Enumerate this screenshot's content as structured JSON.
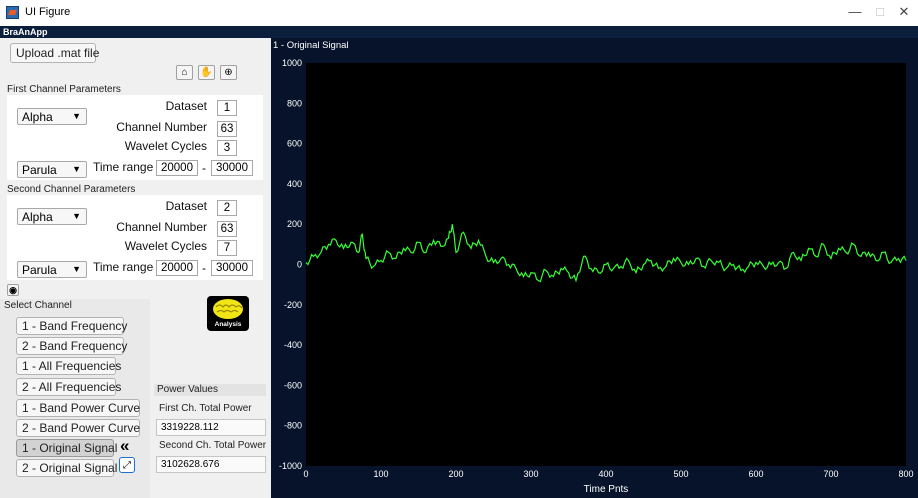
{
  "window": {
    "title": "UI Figure",
    "minimize": "—",
    "maximize": "□",
    "close": "✕",
    "menubar_label": "BraAnApp"
  },
  "left": {
    "upload_label": "Upload .mat file",
    "toolbar_icons": [
      "home-icon",
      "pan-hand-icon",
      "zoom-in-icon"
    ],
    "first_channel": {
      "heading": "First Channel Parameters",
      "band": "Alpha",
      "dataset_label": "Dataset",
      "dataset": "1",
      "channel_label": "Channel Number",
      "channel": "63",
      "cycles_label": "Wavelet Cycles",
      "cycles": "3",
      "colormap": "Parula",
      "time_label": "Time range",
      "time_from": "20000",
      "time_sep": "-",
      "time_to": "30000"
    },
    "second_channel": {
      "heading": "Second Channel Parameters",
      "band": "Alpha",
      "dataset_label": "Dataset",
      "dataset": "2",
      "channel_label": "Channel Number",
      "channel": "63",
      "cycles_label": "Wavelet Cycles",
      "cycles": "7",
      "colormap": "Parula",
      "time_label": "Time range",
      "time_from": "20000",
      "time_sep": "-",
      "time_to": "30000"
    },
    "select_channel_heading": "Select Channel",
    "analysis_label": "Analysis",
    "channel_buttons": [
      "1 - Band Frequency",
      "2 - Band Frequency",
      "1 - All Frequencies",
      "2 - All Frequencies",
      "1 - Band Power Curve",
      "2 - Band Power Curve",
      "1 - Original Signal",
      "2 - Original Signal"
    ],
    "collapse_icon": "«",
    "power": {
      "heading": "Power Values",
      "first_label": "First Ch. Total Power",
      "first_value": "3319228.112",
      "second_label": "Second Ch. Total Power",
      "second_value": "3102628.676"
    }
  },
  "plot": {
    "panel_title": "1 - Original Signal",
    "line_color": "#33ff33",
    "background": "#000000"
  },
  "chart_data": {
    "type": "line",
    "title": "",
    "xlabel": "Time Pnts",
    "ylabel": "",
    "xlim": [
      0,
      800
    ],
    "ylim": [
      -1000,
      1000
    ],
    "xticks": [
      0,
      100,
      200,
      300,
      400,
      500,
      600,
      700,
      800
    ],
    "yticks": [
      -1000,
      -800,
      -600,
      -400,
      -200,
      0,
      200,
      400,
      600,
      800,
      1000
    ],
    "grid": false,
    "series": [
      {
        "values": [
          [
            0,
            10
          ],
          [
            10,
            40
          ],
          [
            20,
            60
          ],
          [
            30,
            100
          ],
          [
            40,
            120
          ],
          [
            50,
            80
          ],
          [
            60,
            110
          ],
          [
            70,
            60
          ],
          [
            75,
            150
          ],
          [
            80,
            30
          ],
          [
            90,
            -10
          ],
          [
            100,
            20
          ],
          [
            110,
            60
          ],
          [
            120,
            30
          ],
          [
            130,
            80
          ],
          [
            140,
            60
          ],
          [
            150,
            110
          ],
          [
            160,
            60
          ],
          [
            170,
            120
          ],
          [
            180,
            90
          ],
          [
            190,
            130
          ],
          [
            195,
            200
          ],
          [
            200,
            60
          ],
          [
            210,
            160
          ],
          [
            220,
            80
          ],
          [
            230,
            120
          ],
          [
            240,
            40
          ],
          [
            250,
            10
          ],
          [
            260,
            30
          ],
          [
            270,
            0
          ],
          [
            280,
            -20
          ],
          [
            290,
            -60
          ],
          [
            300,
            -40
          ],
          [
            310,
            -80
          ],
          [
            320,
            -30
          ],
          [
            330,
            -60
          ],
          [
            340,
            -20
          ],
          [
            350,
            -40
          ],
          [
            360,
            -80
          ],
          [
            370,
            40
          ],
          [
            380,
            -20
          ],
          [
            390,
            -40
          ],
          [
            400,
            0
          ],
          [
            410,
            -20
          ],
          [
            420,
            -10
          ],
          [
            430,
            20
          ],
          [
            440,
            -40
          ],
          [
            450,
            0
          ],
          [
            460,
            20
          ],
          [
            470,
            -20
          ],
          [
            480,
            -10
          ],
          [
            490,
            30
          ],
          [
            500,
            10
          ],
          [
            510,
            0
          ],
          [
            520,
            30
          ],
          [
            530,
            -10
          ],
          [
            540,
            20
          ],
          [
            550,
            10
          ],
          [
            560,
            -20
          ],
          [
            570,
            0
          ],
          [
            580,
            -30
          ],
          [
            590,
            -10
          ],
          [
            600,
            10
          ],
          [
            610,
            -10
          ],
          [
            620,
            0
          ],
          [
            630,
            10
          ],
          [
            640,
            -20
          ],
          [
            650,
            60
          ],
          [
            660,
            20
          ],
          [
            670,
            80
          ],
          [
            680,
            40
          ],
          [
            690,
            100
          ],
          [
            700,
            30
          ],
          [
            710,
            80
          ],
          [
            720,
            60
          ],
          [
            730,
            100
          ],
          [
            740,
            40
          ],
          [
            750,
            60
          ],
          [
            760,
            20
          ],
          [
            770,
            60
          ],
          [
            780,
            10
          ],
          [
            790,
            30
          ],
          [
            800,
            20
          ]
        ]
      }
    ]
  }
}
